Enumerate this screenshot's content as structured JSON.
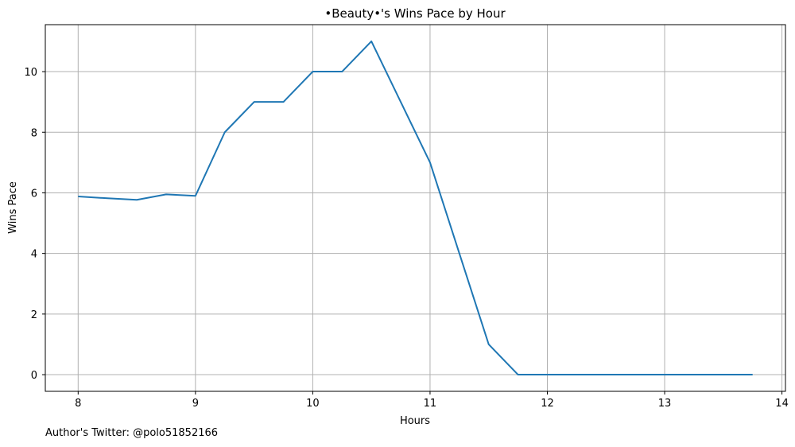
{
  "chart_data": {
    "type": "line",
    "title": "•Beauty•'s Wins Pace by Hour",
    "xlabel": "Hours",
    "ylabel": "Wins Pace",
    "xlim": [
      7.72,
      14.03
    ],
    "ylim": [
      -0.55,
      11.55
    ],
    "xticks": [
      8,
      9,
      10,
      11,
      12,
      13,
      14
    ],
    "yticks": [
      0,
      2,
      4,
      6,
      8,
      10
    ],
    "grid": true,
    "color": "#1f77b4",
    "series": [
      {
        "x": [
          8.0,
          8.25,
          8.5,
          8.75,
          9.0,
          9.25,
          9.5,
          9.75,
          10.0,
          10.25,
          10.5,
          10.75,
          11.0,
          11.25,
          11.5,
          11.75,
          12.0,
          12.25,
          12.5,
          12.75,
          13.0,
          13.25,
          13.5,
          13.75
        ],
        "y": [
          5.88,
          5.82,
          5.77,
          5.95,
          5.9,
          8.0,
          9.0,
          9.0,
          10.0,
          10.0,
          11.0,
          9.0,
          7.0,
          4.0,
          1.0,
          0.0,
          0.0,
          0.0,
          0.0,
          0.0,
          0.0,
          0.0,
          0.0,
          0.0
        ]
      }
    ]
  },
  "footer": "Author's Twitter: @polo51852166"
}
